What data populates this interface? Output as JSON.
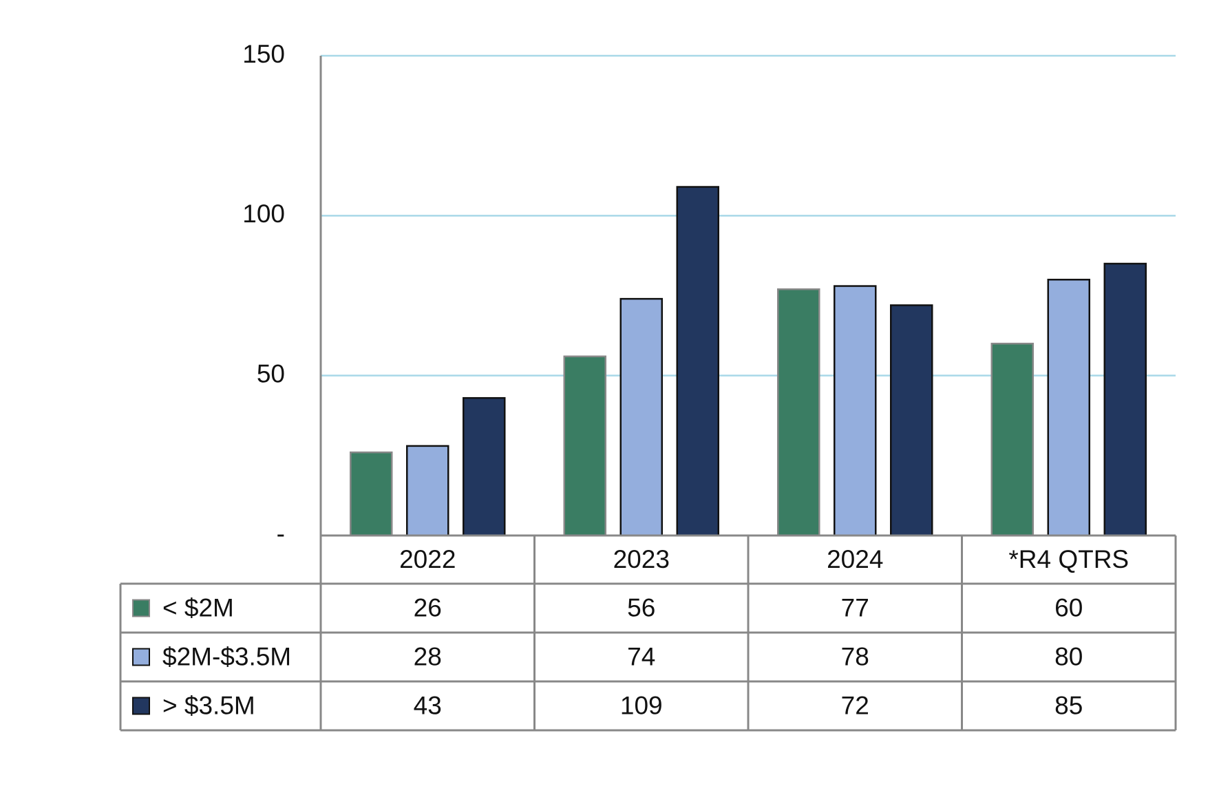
{
  "chart_data": {
    "type": "bar",
    "categories": [
      "2022",
      "2023",
      "2024",
      "*R4 QTRS"
    ],
    "series": [
      {
        "name": "< $2M",
        "color": "#3a7d63",
        "values": [
          26,
          56,
          77,
          60
        ]
      },
      {
        "name": "$2M-$3.5M",
        "color": "#94aedd",
        "values": [
          28,
          74,
          78,
          80
        ]
      },
      {
        "name": "> $3.5M",
        "color": "#22375f",
        "values": [
          43,
          109,
          72,
          85
        ]
      }
    ],
    "ylim": [
      0,
      150
    ],
    "yticks": [
      {
        "value": 0,
        "label": "-"
      },
      50,
      100,
      150
    ],
    "grid": true
  }
}
